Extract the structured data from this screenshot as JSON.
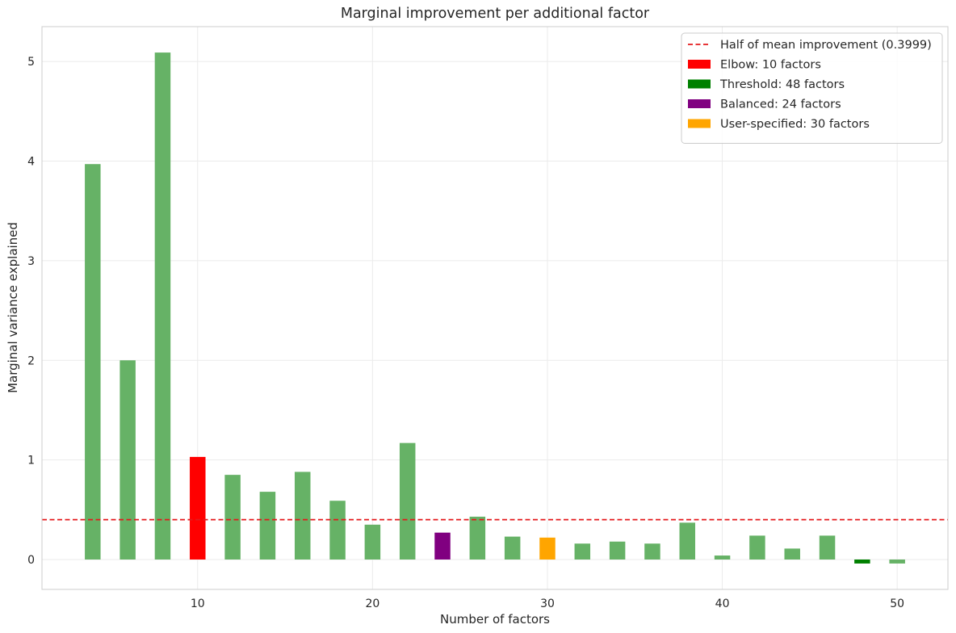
{
  "chart_data": {
    "type": "bar",
    "title": "Marginal improvement per additional factor",
    "xlabel": "Number of factors",
    "ylabel": "Marginal variance explained",
    "xlim": [
      1.1,
      52.9
    ],
    "ylim": [
      -0.3,
      5.35
    ],
    "x_ticks": [
      10,
      20,
      30,
      40,
      50
    ],
    "y_ticks": [
      0,
      1,
      2,
      3,
      4,
      5
    ],
    "grid": true,
    "legend_position": "top-right",
    "bar_width": 0.9,
    "x": [
      4,
      6,
      8,
      10,
      12,
      14,
      16,
      18,
      20,
      22,
      24,
      26,
      28,
      30,
      32,
      34,
      36,
      38,
      40,
      42,
      44,
      46,
      48,
      50
    ],
    "values": [
      3.97,
      2.0,
      5.09,
      1.03,
      0.85,
      0.68,
      0.88,
      0.59,
      0.35,
      1.17,
      0.27,
      0.43,
      0.23,
      0.22,
      0.16,
      0.18,
      0.16,
      0.37,
      0.04,
      0.24,
      0.11,
      0.24,
      -0.04,
      -0.04
    ],
    "bar_colors": [
      "#66b266",
      "#66b266",
      "#66b266",
      "#ff0000",
      "#66b266",
      "#66b266",
      "#66b266",
      "#66b266",
      "#66b266",
      "#66b266",
      "#800080",
      "#66b266",
      "#66b266",
      "#ffa500",
      "#66b266",
      "#66b266",
      "#66b266",
      "#66b266",
      "#66b266",
      "#66b266",
      "#66b266",
      "#66b266",
      "#008000",
      "#66b266"
    ],
    "reference_line": {
      "y": 0.3999,
      "color": "#e41a1c",
      "style": "dashed"
    },
    "legend": [
      {
        "label": "Half of mean improvement (0.3999)",
        "kind": "line",
        "color": "#e41a1c"
      },
      {
        "label": "Elbow: 10 factors",
        "kind": "patch",
        "color": "#ff0000"
      },
      {
        "label": "Threshold: 48 factors",
        "kind": "patch",
        "color": "#008000"
      },
      {
        "label": "Balanced: 24 factors",
        "kind": "patch",
        "color": "#800080"
      },
      {
        "label": "User-specified: 30 factors",
        "kind": "patch",
        "color": "#ffa500"
      }
    ]
  }
}
